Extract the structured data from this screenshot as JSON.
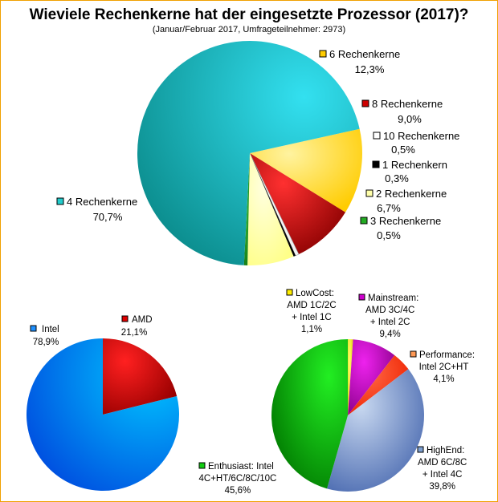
{
  "title": "Wieviele Rechenkerne hat der eingesetzte Prozessor (2017)?",
  "subtitle": "(Januar/Februar 2017, Umfrageteilnehmer: 2973)",
  "chart_data": [
    {
      "type": "pie",
      "slices": [
        {
          "label": "6 Rechenkerne",
          "value_label": "12,3%",
          "value": 12.3,
          "color": "#ffcc00"
        },
        {
          "label": "8 Rechenkerne",
          "value_label": "9,0%",
          "value": 9.0,
          "color": "#cc0000"
        },
        {
          "label": "10 Rechenkerne",
          "value_label": "0,5%",
          "value": 0.5,
          "color": "#ffffff"
        },
        {
          "label": "1 Rechenkern",
          "value_label": "0,3%",
          "value": 0.3,
          "color": "#000000"
        },
        {
          "label": "2 Rechenkerne",
          "value_label": "6,7%",
          "value": 6.7,
          "color": "#ffffaa"
        },
        {
          "label": "3 Rechenkerne",
          "value_label": "0,5%",
          "value": 0.5,
          "color": "#22aa22"
        },
        {
          "label": "4 Rechenkerne",
          "value_label": "70,7%",
          "value": 70.7,
          "color": "#22cccc"
        }
      ]
    },
    {
      "type": "pie",
      "slices": [
        {
          "label": "AMD",
          "value_label": "21,1%",
          "value": 21.1,
          "color": "#dd0000"
        },
        {
          "label": "Intel",
          "value_label": "78,9%",
          "value": 78.9,
          "color": "#1e90ff"
        }
      ]
    },
    {
      "type": "pie",
      "slices": [
        {
          "label": "LowCost:\nAMD 1C/2C\n+ Intel 1C",
          "value_label": "1,1%",
          "value": 1.1,
          "color": "#ffee00"
        },
        {
          "label": "Mainstream:\nAMD 3C/4C\n+ Intel 2C",
          "value_label": "9,4%",
          "value": 9.4,
          "color": "#cc00cc"
        },
        {
          "label": "Performance:\nIntel 2C+HT",
          "value_label": "4,1%",
          "value": 4.1,
          "color": "#ff4422"
        },
        {
          "label": "HighEnd:\nAMD 6C/8C\n+ Intel 4C",
          "value_label": "39,8%",
          "value": 39.8,
          "color": "#7d9fd0"
        },
        {
          "label": "Enthusiast: Intel\n4C+HT/6C/8C/10C",
          "value_label": "45,6%",
          "value": 45.6,
          "color": "#11cc11"
        }
      ]
    }
  ]
}
